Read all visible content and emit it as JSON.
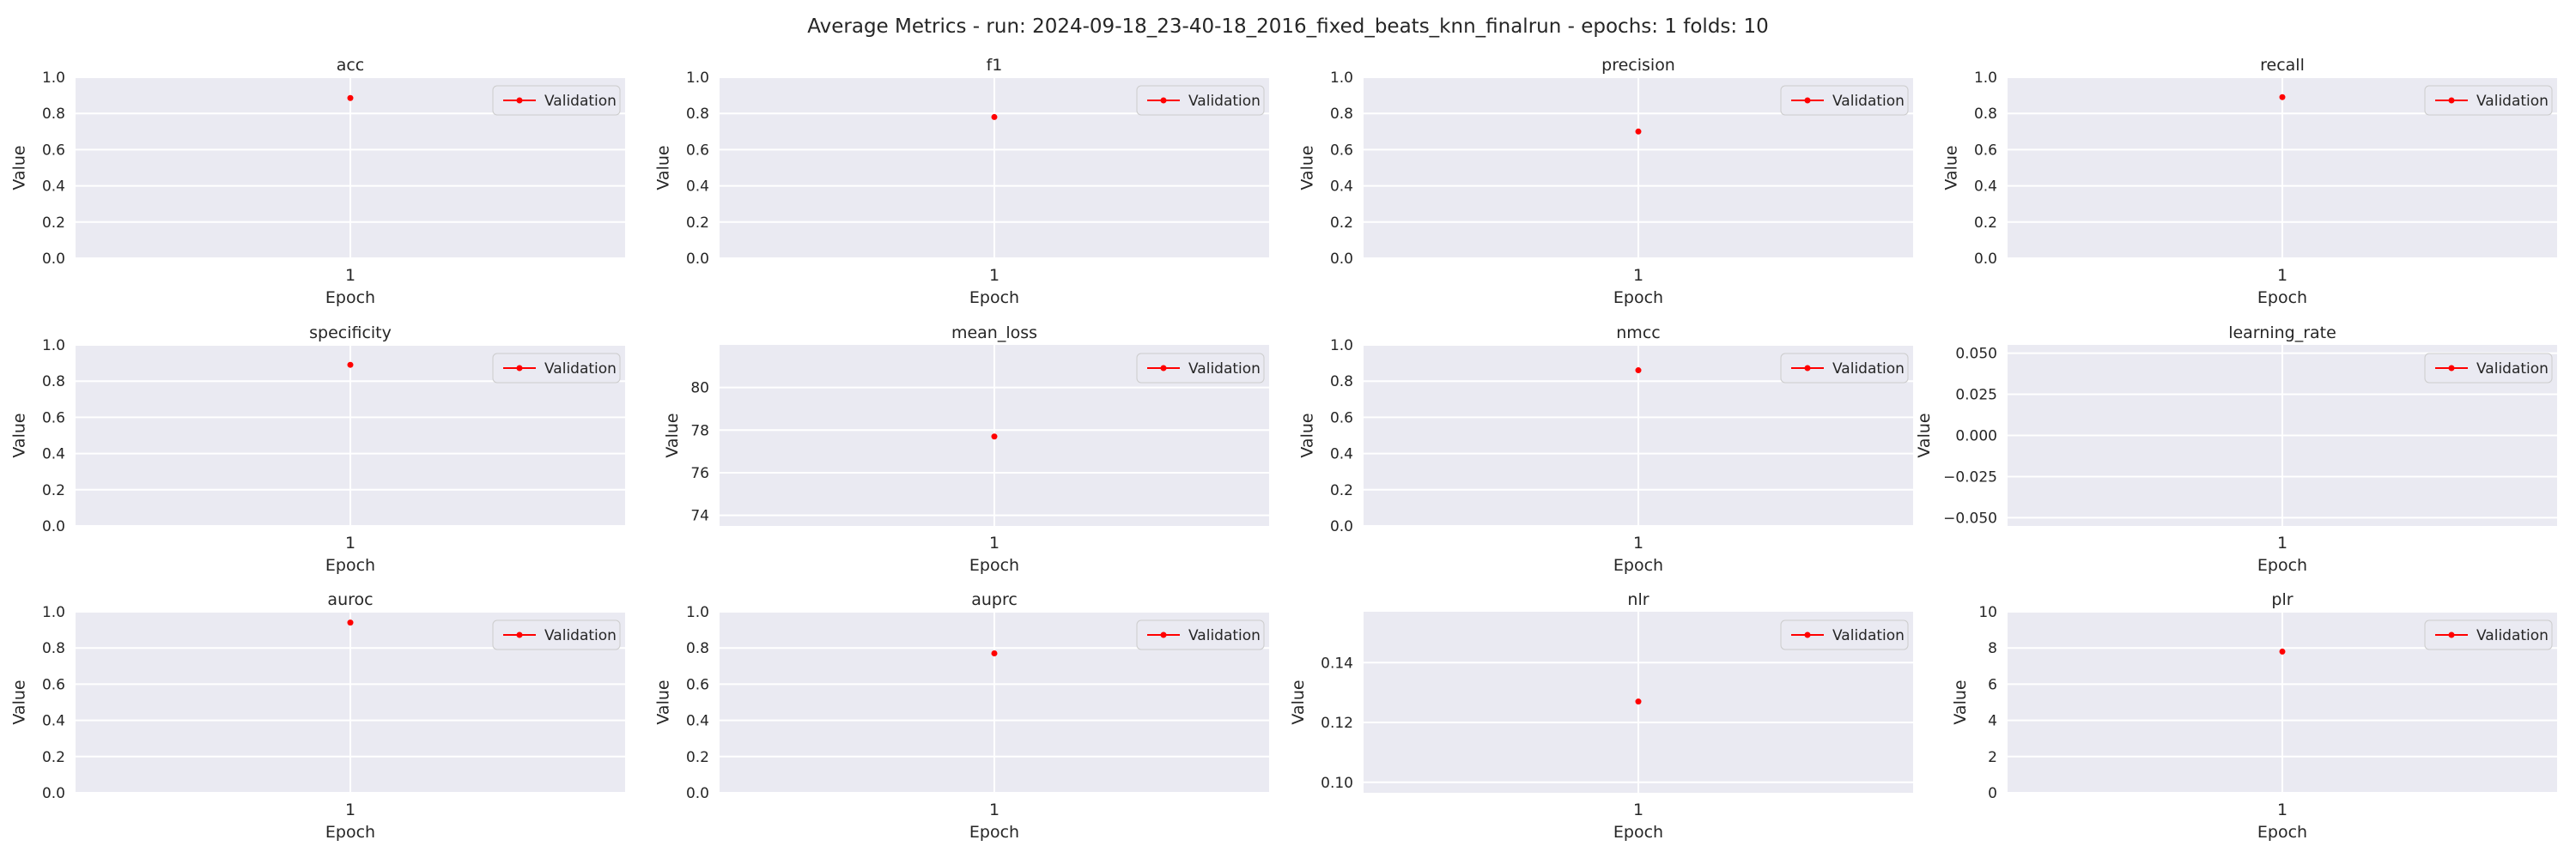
{
  "figure": {
    "title": "Average Metrics - run: 2024-09-18_23-40-18_2016_fixed_beats_knn_finalrun - epochs: 1 folds: 10"
  },
  "colors": {
    "plot_background": "#eaeaf2",
    "grid": "#ffffff",
    "series": "#ff0000",
    "text": "#262626"
  },
  "chart_data": [
    {
      "type": "line",
      "title": "acc",
      "xlabel": "Epoch",
      "ylabel": "Value",
      "x": [
        1
      ],
      "xticks": [
        "1"
      ],
      "ylim": [
        0,
        1
      ],
      "yticks": [
        "0.0",
        "0.2",
        "0.4",
        "0.6",
        "0.8",
        "1.0"
      ],
      "grid": true,
      "legend": "top-right",
      "series": [
        {
          "name": "Validation",
          "values": [
            0.885
          ]
        }
      ]
    },
    {
      "type": "line",
      "title": "f1",
      "xlabel": "Epoch",
      "ylabel": "Value",
      "x": [
        1
      ],
      "xticks": [
        "1"
      ],
      "ylim": [
        0,
        1
      ],
      "yticks": [
        "0.0",
        "0.2",
        "0.4",
        "0.6",
        "0.8",
        "1.0"
      ],
      "grid": true,
      "legend": "top-right",
      "series": [
        {
          "name": "Validation",
          "values": [
            0.78
          ]
        }
      ]
    },
    {
      "type": "line",
      "title": "precision",
      "xlabel": "Epoch",
      "ylabel": "Value",
      "x": [
        1
      ],
      "xticks": [
        "1"
      ],
      "ylim": [
        0,
        1
      ],
      "yticks": [
        "0.0",
        "0.2",
        "0.4",
        "0.6",
        "0.8",
        "1.0"
      ],
      "grid": true,
      "legend": "top-right",
      "series": [
        {
          "name": "Validation",
          "values": [
            0.7
          ]
        }
      ]
    },
    {
      "type": "line",
      "title": "recall",
      "xlabel": "Epoch",
      "ylabel": "Value",
      "x": [
        1
      ],
      "xticks": [
        "1"
      ],
      "ylim": [
        0,
        1
      ],
      "yticks": [
        "0.0",
        "0.2",
        "0.4",
        "0.6",
        "0.8",
        "1.0"
      ],
      "grid": true,
      "legend": "top-right",
      "series": [
        {
          "name": "Validation",
          "values": [
            0.89
          ]
        }
      ]
    },
    {
      "type": "line",
      "title": "specificity",
      "xlabel": "Epoch",
      "ylabel": "Value",
      "x": [
        1
      ],
      "xticks": [
        "1"
      ],
      "ylim": [
        0,
        1
      ],
      "yticks": [
        "0.0",
        "0.2",
        "0.4",
        "0.6",
        "0.8",
        "1.0"
      ],
      "grid": true,
      "legend": "top-right",
      "series": [
        {
          "name": "Validation",
          "values": [
            0.89
          ]
        }
      ]
    },
    {
      "type": "line",
      "title": "mean_loss",
      "xlabel": "Epoch",
      "ylabel": "Value",
      "x": [
        1
      ],
      "xticks": [
        "1"
      ],
      "ylim": [
        73.5,
        82
      ],
      "yticks": [
        "74",
        "76",
        "78",
        "80"
      ],
      "grid": true,
      "legend": "top-right",
      "series": [
        {
          "name": "Validation",
          "values": [
            77.7
          ]
        }
      ]
    },
    {
      "type": "line",
      "title": "nmcc",
      "xlabel": "Epoch",
      "ylabel": "Value",
      "x": [
        1
      ],
      "xticks": [
        "1"
      ],
      "ylim": [
        0,
        1
      ],
      "yticks": [
        "0.0",
        "0.2",
        "0.4",
        "0.6",
        "0.8",
        "1.0"
      ],
      "grid": true,
      "legend": "top-right",
      "series": [
        {
          "name": "Validation",
          "values": [
            0.86
          ]
        }
      ]
    },
    {
      "type": "line",
      "title": "learning_rate",
      "xlabel": "Epoch",
      "ylabel": "Value",
      "x": [
        1
      ],
      "xticks": [
        "1"
      ],
      "ylim": [
        -0.055,
        0.055
      ],
      "yticks": [
        "0.050",
        "0.025",
        "0.000",
        "−0.025",
        "−0.050"
      ],
      "grid": true,
      "legend": "top-right",
      "series": [
        {
          "name": "Validation",
          "values": [
            null
          ]
        }
      ]
    },
    {
      "type": "line",
      "title": "auroc",
      "xlabel": "Epoch",
      "ylabel": "Value",
      "x": [
        1
      ],
      "xticks": [
        "1"
      ],
      "ylim": [
        0,
        1
      ],
      "yticks": [
        "0.0",
        "0.2",
        "0.4",
        "0.6",
        "0.8",
        "1.0"
      ],
      "grid": true,
      "legend": "top-right",
      "series": [
        {
          "name": "Validation",
          "values": [
            0.94
          ]
        }
      ]
    },
    {
      "type": "line",
      "title": "auprc",
      "xlabel": "Epoch",
      "ylabel": "Value",
      "x": [
        1
      ],
      "xticks": [
        "1"
      ],
      "ylim": [
        0,
        1
      ],
      "yticks": [
        "0.0",
        "0.2",
        "0.4",
        "0.6",
        "0.8",
        "1.0"
      ],
      "grid": true,
      "legend": "top-right",
      "series": [
        {
          "name": "Validation",
          "values": [
            0.77
          ]
        }
      ]
    },
    {
      "type": "line",
      "title": "nlr",
      "xlabel": "Epoch",
      "ylabel": "Value",
      "x": [
        1
      ],
      "xticks": [
        "1"
      ],
      "ylim": [
        0.0965,
        0.157
      ],
      "yticks": [
        "0.10",
        "0.12",
        "0.14"
      ],
      "grid": true,
      "legend": "top-right",
      "series": [
        {
          "name": "Validation",
          "values": [
            0.127
          ]
        }
      ]
    },
    {
      "type": "line",
      "title": "plr",
      "xlabel": "Epoch",
      "ylabel": "Value",
      "x": [
        1
      ],
      "xticks": [
        "1"
      ],
      "ylim": [
        0,
        10
      ],
      "yticks": [
        "0",
        "2",
        "4",
        "6",
        "8",
        "10"
      ],
      "grid": true,
      "legend": "top-right",
      "series": [
        {
          "name": "Validation",
          "values": [
            7.8
          ]
        }
      ]
    }
  ]
}
